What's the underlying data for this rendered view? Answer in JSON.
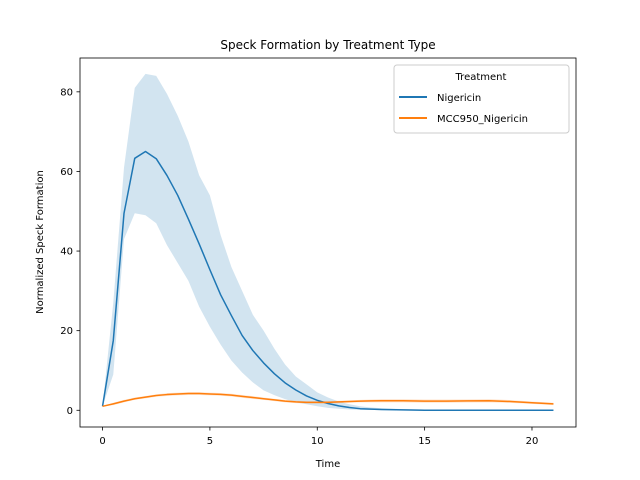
{
  "chart_data": {
    "type": "line",
    "title": "Speck Formation by Treatment Type",
    "xlabel": "Time",
    "ylabel": "Normalized Speck Formation",
    "xlim": [
      -1.05,
      22.05
    ],
    "ylim": [
      -4.2,
      88.5
    ],
    "xticks": [
      0,
      5,
      10,
      15,
      20
    ],
    "yticks": [
      0,
      20,
      40,
      60,
      80
    ],
    "grid": false,
    "legend": {
      "title": "Treatment",
      "placement": "top-right"
    },
    "series": [
      {
        "name": "Nigericin",
        "color": "#1f77b4",
        "x": [
          0,
          0.5,
          1,
          1.5,
          2,
          2.5,
          3,
          3.5,
          4,
          4.5,
          5,
          5.5,
          6,
          6.5,
          7,
          7.5,
          8,
          8.5,
          9,
          9.5,
          10,
          10.5,
          11,
          11.5,
          12,
          12.5,
          13,
          14,
          15,
          16,
          17,
          18,
          19,
          20,
          21
        ],
        "values": [
          1,
          17.5,
          49.5,
          63.3,
          65,
          63.2,
          59,
          54,
          48,
          41.8,
          35.3,
          29,
          23.8,
          18.8,
          15,
          11.9,
          9.2,
          6.9,
          5.1,
          3.6,
          2.5,
          1.7,
          1.1,
          0.7,
          0.4,
          0.3,
          0.2,
          0.1,
          0,
          0,
          0,
          0,
          0,
          0,
          0
        ],
        "upper": [
          1,
          27,
          61,
          81,
          84.5,
          84,
          79.5,
          74,
          67.5,
          59,
          54,
          44,
          36,
          30,
          24,
          20,
          15.5,
          11.5,
          8.5,
          6.5,
          4.5,
          3.2,
          2.2,
          1.5,
          1,
          0.7,
          0.5,
          0.3,
          0.2,
          0.2,
          0.2,
          0.2,
          0.2,
          0.2,
          0.2
        ],
        "lower": [
          1,
          9,
          43,
          49.5,
          49,
          47,
          41.5,
          37,
          32.5,
          26,
          21,
          16.5,
          12.5,
          9.5,
          7,
          5,
          3.8,
          2.8,
          2,
          1.5,
          1,
          0.6,
          0.4,
          0.2,
          0.1,
          0.1,
          0,
          0,
          0,
          0,
          0,
          0,
          0,
          0,
          0
        ]
      },
      {
        "name": "MCC950_Nigericin",
        "color": "#ff7f0e",
        "x": [
          0,
          0.5,
          1,
          1.5,
          2,
          2.5,
          3,
          3.5,
          4,
          4.5,
          5,
          5.5,
          6,
          6.5,
          7,
          7.5,
          8,
          8.5,
          9,
          9.5,
          10,
          10.5,
          11,
          11.5,
          12,
          12.5,
          13,
          14,
          15,
          16,
          17,
          18,
          19,
          20,
          21
        ],
        "values": [
          1,
          1.6,
          2.3,
          2.9,
          3.3,
          3.7,
          3.95,
          4.1,
          4.2,
          4.2,
          4.1,
          4.0,
          3.8,
          3.5,
          3.2,
          2.9,
          2.6,
          2.3,
          2.1,
          2.0,
          2.0,
          2.0,
          2.1,
          2.2,
          2.3,
          2.35,
          2.4,
          2.4,
          2.3,
          2.3,
          2.35,
          2.4,
          2.2,
          1.9,
          1.6
        ],
        "upper": [
          1,
          1.9,
          2.6,
          3.2,
          3.6,
          4.0,
          4.3,
          4.45,
          4.55,
          4.55,
          4.45,
          4.35,
          4.15,
          3.85,
          3.55,
          3.2,
          2.9,
          2.6,
          2.4,
          2.3,
          2.3,
          2.3,
          2.4,
          2.5,
          2.6,
          2.7,
          2.8,
          2.8,
          2.7,
          2.7,
          2.75,
          2.8,
          2.55,
          2.2,
          1.9
        ],
        "lower": [
          1,
          1.3,
          2.0,
          2.6,
          3.0,
          3.4,
          3.6,
          3.75,
          3.85,
          3.85,
          3.75,
          3.65,
          3.45,
          3.15,
          2.85,
          2.6,
          2.3,
          2.0,
          1.8,
          1.7,
          1.7,
          1.7,
          1.8,
          1.9,
          2.0,
          2.0,
          2.0,
          2.0,
          1.9,
          1.9,
          1.95,
          2.0,
          1.85,
          1.6,
          1.3
        ]
      }
    ]
  }
}
